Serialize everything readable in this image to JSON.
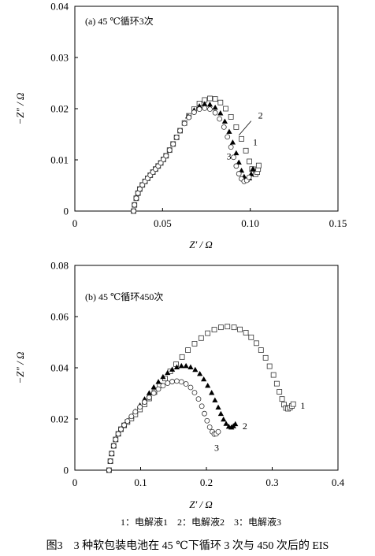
{
  "chart_data": [
    {
      "type": "scatter",
      "title": "(a) 45 ℃循环3次",
      "xlabel": "Z′ / Ω",
      "ylabel": "−Z″ / Ω",
      "xlim": [
        0,
        0.15
      ],
      "ylim": [
        0,
        0.04
      ],
      "xticks": [
        0,
        0.05,
        0.1,
        0.15
      ],
      "xtick_labels": [
        "0",
        "0.05",
        "0.10",
        "0.15"
      ],
      "yticks": [
        0,
        0.01,
        0.02,
        0.03,
        0.04
      ],
      "ytick_labels": [
        "0",
        "0.01",
        "0.02",
        "0.03",
        "0.04"
      ],
      "series": [
        {
          "name": "1",
          "marker": "open-square",
          "points": [
            [
              0.0335,
              0.0
            ],
            [
              0.034,
              0.0012
            ],
            [
              0.035,
              0.0025
            ],
            [
              0.036,
              0.0035
            ],
            [
              0.037,
              0.0043
            ],
            [
              0.0385,
              0.0051
            ],
            [
              0.04,
              0.0058
            ],
            [
              0.0415,
              0.0064
            ],
            [
              0.043,
              0.007
            ],
            [
              0.0445,
              0.0076
            ],
            [
              0.046,
              0.0082
            ],
            [
              0.0475,
              0.0088
            ],
            [
              0.049,
              0.0094
            ],
            [
              0.0505,
              0.0101
            ],
            [
              0.052,
              0.0108
            ],
            [
              0.054,
              0.0119
            ],
            [
              0.056,
              0.0131
            ],
            [
              0.058,
              0.0144
            ],
            [
              0.06,
              0.0157
            ],
            [
              0.0625,
              0.0172
            ],
            [
              0.065,
              0.0186
            ],
            [
              0.068,
              0.0199
            ],
            [
              0.071,
              0.021
            ],
            [
              0.074,
              0.0217
            ],
            [
              0.077,
              0.022
            ],
            [
              0.08,
              0.0219
            ],
            [
              0.083,
              0.0212
            ],
            [
              0.086,
              0.02
            ],
            [
              0.089,
              0.0184
            ],
            [
              0.092,
              0.0164
            ],
            [
              0.095,
              0.0141
            ],
            [
              0.0975,
              0.0118
            ],
            [
              0.0995,
              0.0097
            ],
            [
              0.101,
              0.0082
            ],
            [
              0.102,
              0.0073
            ],
            [
              0.103,
              0.0072
            ],
            [
              0.104,
              0.0076
            ],
            [
              0.1045,
              0.0082
            ],
            [
              0.1048,
              0.0089
            ]
          ]
        },
        {
          "name": "2",
          "marker": "filled-triangle",
          "points": [
            [
              0.0645,
              0.0185
            ],
            [
              0.068,
              0.0197
            ],
            [
              0.071,
              0.0205
            ],
            [
              0.074,
              0.0209
            ],
            [
              0.077,
              0.0208
            ],
            [
              0.08,
              0.0202
            ],
            [
              0.083,
              0.0191
            ],
            [
              0.0855,
              0.0175
            ],
            [
              0.088,
              0.0155
            ],
            [
              0.09,
              0.0134
            ],
            [
              0.092,
              0.0113
            ],
            [
              0.0935,
              0.0095
            ],
            [
              0.095,
              0.0079
            ],
            [
              0.0965,
              0.0067
            ],
            [
              0.098,
              0.0061
            ],
            [
              0.0995,
              0.0064
            ],
            [
              0.1005,
              0.0072
            ],
            [
              0.1015,
              0.0082
            ]
          ]
        },
        {
          "name": "3",
          "marker": "open-circle",
          "points": [
            [
              0.0335,
              0.0
            ],
            [
              0.034,
              0.0012
            ],
            [
              0.035,
              0.0025
            ],
            [
              0.036,
              0.0035
            ],
            [
              0.037,
              0.0043
            ],
            [
              0.0385,
              0.0051
            ],
            [
              0.04,
              0.0058
            ],
            [
              0.0415,
              0.0064
            ],
            [
              0.043,
              0.007
            ],
            [
              0.0445,
              0.0076
            ],
            [
              0.046,
              0.0082
            ],
            [
              0.0475,
              0.0088
            ],
            [
              0.049,
              0.0094
            ],
            [
              0.0505,
              0.0101
            ],
            [
              0.052,
              0.0108
            ],
            [
              0.054,
              0.0119
            ],
            [
              0.056,
              0.0131
            ],
            [
              0.058,
              0.0144
            ],
            [
              0.06,
              0.0157
            ],
            [
              0.0625,
              0.0171
            ],
            [
              0.065,
              0.0183
            ],
            [
              0.068,
              0.0193
            ],
            [
              0.071,
              0.0199
            ],
            [
              0.074,
              0.0201
            ],
            [
              0.077,
              0.0199
            ],
            [
              0.08,
              0.0192
            ],
            [
              0.0825,
              0.018
            ],
            [
              0.085,
              0.0164
            ],
            [
              0.087,
              0.0145
            ],
            [
              0.089,
              0.0125
            ],
            [
              0.0905,
              0.0105
            ],
            [
              0.092,
              0.0088
            ],
            [
              0.0935,
              0.0073
            ],
            [
              0.095,
              0.0063
            ],
            [
              0.0965,
              0.0058
            ],
            [
              0.098,
              0.006
            ],
            [
              0.0993,
              0.0066
            ]
          ]
        }
      ],
      "annotations": [
        {
          "text": "2",
          "x": 0.1045,
          "y": 0.0187
        },
        {
          "text": "1",
          "x": 0.1015,
          "y": 0.0135
        },
        {
          "text": "3",
          "x": 0.0865,
          "y": 0.0107
        }
      ],
      "leader": [
        [
          0.1005,
          0.0176
        ],
        [
          0.0935,
          0.0148
        ]
      ]
    },
    {
      "type": "scatter",
      "title": "(b) 45 ℃循环450次",
      "xlabel": "Z′ / Ω",
      "ylabel": "−Z″ / Ω",
      "xlim": [
        0,
        0.4
      ],
      "ylim": [
        0,
        0.08
      ],
      "xticks": [
        0,
        0.1,
        0.2,
        0.3,
        0.4
      ],
      "xtick_labels": [
        "0",
        "0.1",
        "0.2",
        "0.3",
        "0.4"
      ],
      "yticks": [
        0,
        0.02,
        0.04,
        0.06,
        0.08
      ],
      "ytick_labels": [
        "0",
        "0.02",
        "0.04",
        "0.06",
        "0.08"
      ],
      "series": [
        {
          "name": "1",
          "marker": "open-square",
          "points": [
            [
              0.052,
              0.0
            ],
            [
              0.054,
              0.0035
            ],
            [
              0.056,
              0.0065
            ],
            [
              0.059,
              0.0095
            ],
            [
              0.062,
              0.012
            ],
            [
              0.066,
              0.0142
            ],
            [
              0.07,
              0.016
            ],
            [
              0.075,
              0.0175
            ],
            [
              0.08,
              0.0188
            ],
            [
              0.086,
              0.0202
            ],
            [
              0.092,
              0.0218
            ],
            [
              0.099,
              0.0237
            ],
            [
              0.106,
              0.0257
            ],
            [
              0.113,
              0.028
            ],
            [
              0.121,
              0.0305
            ],
            [
              0.129,
              0.0331
            ],
            [
              0.137,
              0.0358
            ],
            [
              0.145,
              0.0386
            ],
            [
              0.154,
              0.0414
            ],
            [
              0.163,
              0.0442
            ],
            [
              0.172,
              0.0469
            ],
            [
              0.182,
              0.0494
            ],
            [
              0.192,
              0.0516
            ],
            [
              0.202,
              0.0535
            ],
            [
              0.212,
              0.0549
            ],
            [
              0.222,
              0.0558
            ],
            [
              0.232,
              0.0561
            ],
            [
              0.242,
              0.0558
            ],
            [
              0.251,
              0.055
            ],
            [
              0.26,
              0.0537
            ],
            [
              0.268,
              0.0519
            ],
            [
              0.276,
              0.0496
            ],
            [
              0.283,
              0.0469
            ],
            [
              0.29,
              0.0439
            ],
            [
              0.296,
              0.0406
            ],
            [
              0.302,
              0.0372
            ],
            [
              0.307,
              0.0338
            ],
            [
              0.311,
              0.0306
            ],
            [
              0.315,
              0.0278
            ],
            [
              0.318,
              0.0256
            ],
            [
              0.321,
              0.0243
            ],
            [
              0.324,
              0.024
            ],
            [
              0.327,
              0.0244
            ],
            [
              0.33,
              0.0251
            ],
            [
              0.332,
              0.0258
            ]
          ]
        },
        {
          "name": "2",
          "marker": "filled-triangle",
          "points": [
            [
              0.052,
              0.0
            ],
            [
              0.054,
              0.0035
            ],
            [
              0.056,
              0.0065
            ],
            [
              0.059,
              0.0095
            ],
            [
              0.062,
              0.012
            ],
            [
              0.066,
              0.0142
            ],
            [
              0.07,
              0.016
            ],
            [
              0.075,
              0.0176
            ],
            [
              0.08,
              0.0192
            ],
            [
              0.086,
              0.021
            ],
            [
              0.092,
              0.023
            ],
            [
              0.099,
              0.0253
            ],
            [
              0.106,
              0.0277
            ],
            [
              0.113,
              0.0301
            ],
            [
              0.12,
              0.0324
            ],
            [
              0.127,
              0.0345
            ],
            [
              0.134,
              0.0364
            ],
            [
              0.141,
              0.038
            ],
            [
              0.148,
              0.0393
            ],
            [
              0.155,
              0.0402
            ],
            [
              0.162,
              0.0407
            ],
            [
              0.169,
              0.0407
            ],
            [
              0.176,
              0.0402
            ],
            [
              0.183,
              0.0392
            ],
            [
              0.19,
              0.0376
            ],
            [
              0.196,
              0.0355
            ],
            [
              0.202,
              0.033
            ],
            [
              0.208,
              0.0302
            ],
            [
              0.213,
              0.0273
            ],
            [
              0.218,
              0.0245
            ],
            [
              0.222,
              0.022
            ],
            [
              0.226,
              0.0198
            ],
            [
              0.23,
              0.0181
            ],
            [
              0.234,
              0.017
            ],
            [
              0.238,
              0.0167
            ],
            [
              0.241,
              0.0172
            ],
            [
              0.244,
              0.018
            ]
          ]
        },
        {
          "name": "3",
          "marker": "open-circle",
          "points": [
            [
              0.052,
              0.0
            ],
            [
              0.054,
              0.0035
            ],
            [
              0.056,
              0.0065
            ],
            [
              0.059,
              0.0095
            ],
            [
              0.062,
              0.012
            ],
            [
              0.066,
              0.0142
            ],
            [
              0.07,
              0.016
            ],
            [
              0.075,
              0.0176
            ],
            [
              0.08,
              0.0192
            ],
            [
              0.086,
              0.021
            ],
            [
              0.092,
              0.0228
            ],
            [
              0.099,
              0.0247
            ],
            [
              0.106,
              0.0266
            ],
            [
              0.113,
              0.0284
            ],
            [
              0.12,
              0.0301
            ],
            [
              0.127,
              0.0317
            ],
            [
              0.134,
              0.033
            ],
            [
              0.141,
              0.034
            ],
            [
              0.148,
              0.0346
            ],
            [
              0.155,
              0.0348
            ],
            [
              0.162,
              0.0345
            ],
            [
              0.169,
              0.0337
            ],
            [
              0.176,
              0.0323
            ],
            [
              0.182,
              0.0303
            ],
            [
              0.188,
              0.0278
            ],
            [
              0.193,
              0.025
            ],
            [
              0.197,
              0.0221
            ],
            [
              0.201,
              0.0193
            ],
            [
              0.205,
              0.0168
            ],
            [
              0.209,
              0.015
            ],
            [
              0.212,
              0.0141
            ],
            [
              0.215,
              0.0142
            ],
            [
              0.218,
              0.015
            ]
          ]
        }
      ],
      "annotations": [
        {
          "text": "1",
          "x": 0.343,
          "y": 0.0253
        },
        {
          "text": "2",
          "x": 0.255,
          "y": 0.0173
        },
        {
          "text": "3",
          "x": 0.212,
          "y": 0.0088
        }
      ]
    }
  ],
  "legend_text": "1：电解液1　2：电解液2　3：电解液3",
  "caption": "图3　3 种软包装电池在 45 ℃下循环 3 次与 450 次后的 EIS"
}
